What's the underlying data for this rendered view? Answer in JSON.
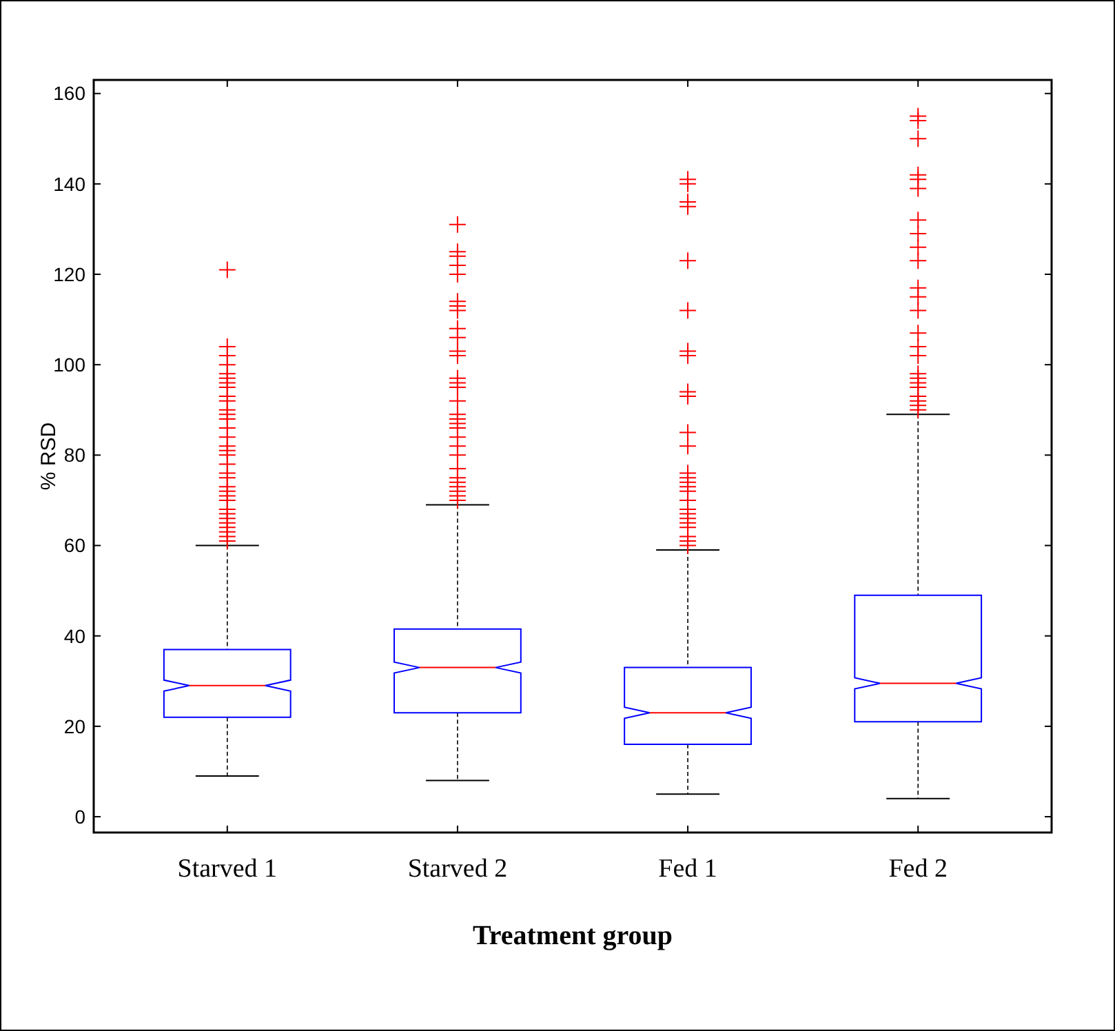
{
  "chart_data": {
    "type": "box",
    "xlabel": "Treatment group",
    "ylabel": "% RSD",
    "categories": [
      "Starved 1",
      "Starved 2",
      "Fed 1",
      "Fed 2"
    ],
    "boxes": [
      {
        "low": 9,
        "q1": 22,
        "median": 29,
        "q3": 37,
        "high": 60,
        "outliers": [
          121,
          104,
          102,
          100,
          98,
          97,
          96,
          95,
          93,
          92,
          90,
          89,
          88,
          86,
          84,
          82,
          81,
          80,
          78,
          76,
          75,
          73,
          72,
          71,
          70,
          68,
          67,
          66,
          65,
          64,
          63,
          62,
          61
        ]
      },
      {
        "low": 8,
        "q1": 23,
        "median": 33,
        "q3": 41.5,
        "high": 69,
        "outliers": [
          131,
          125,
          124,
          122,
          120,
          114,
          113,
          112,
          108,
          106,
          103,
          102,
          97,
          96,
          95,
          92,
          89,
          88,
          87,
          86,
          84,
          82,
          80,
          77,
          75,
          74,
          73,
          72,
          71,
          70
        ]
      },
      {
        "low": 5,
        "q1": 16,
        "median": 23,
        "q3": 33,
        "high": 59,
        "outliers": [
          141,
          140,
          136,
          135,
          123,
          112,
          103,
          102,
          94,
          93,
          85,
          82,
          76,
          75,
          74,
          73,
          72,
          70,
          68,
          67,
          66,
          65,
          64,
          62,
          61,
          60
        ]
      },
      {
        "low": 4,
        "q1": 21,
        "median": 29.5,
        "q3": 49,
        "high": 89,
        "outliers": [
          155,
          154,
          150,
          142,
          141,
          139,
          132,
          129,
          126,
          123,
          117,
          115,
          112,
          107,
          104,
          102,
          98,
          97,
          96,
          95,
          93,
          92,
          91,
          90
        ]
      }
    ],
    "ylim": [
      -3.5,
      163
    ],
    "yticks": [
      0,
      20,
      40,
      60,
      80,
      100,
      120,
      140,
      160
    ],
    "marker": "cross"
  }
}
